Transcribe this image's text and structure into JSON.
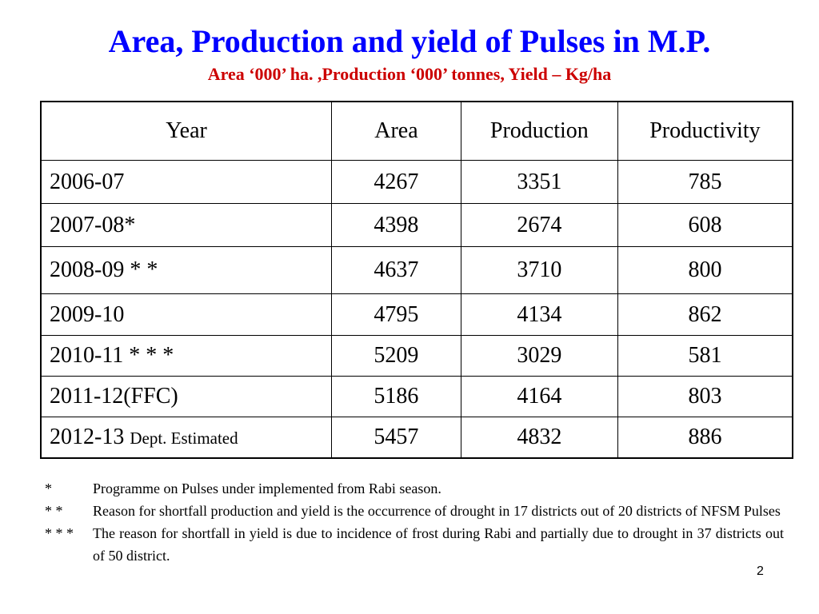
{
  "title": "Area, Production and yield of Pulses in M.P.",
  "subtitle": "Area  ‘000’ ha. ,Production ‘000’ tonnes, Yield – Kg/ha",
  "table": {
    "headers": [
      "Year",
      "Area",
      "Production",
      "Productivity"
    ],
    "rows": [
      {
        "year": "2006-07",
        "year_note": "",
        "area": "4267",
        "production": "3351",
        "productivity": "785"
      },
      {
        "year": "2007-08*",
        "year_note": "",
        "area": "4398",
        "production": "2674",
        "productivity": "608"
      },
      {
        "year": "2008-09 * *",
        "year_note": "",
        "area": "4637",
        "production": "3710",
        "productivity": "800"
      },
      {
        "year": "2009-10",
        "year_note": "",
        "area": "4795",
        "production": "4134",
        "productivity": "862"
      },
      {
        "year": "2010-11 * * *",
        "year_note": "",
        "area": "5209",
        "production": "3029",
        "productivity": "581"
      },
      {
        "year": "2011-12(FFC)",
        "year_note": "",
        "area": "5186",
        "production": "4164",
        "productivity": "803"
      },
      {
        "year": "2012-13",
        "year_note": "Dept. Estimated",
        "area": "5457",
        "production": "4832",
        "productivity": "886"
      }
    ]
  },
  "notes": [
    {
      "mark": "*",
      "text": "Programme on Pulses under implemented from Rabi season."
    },
    {
      "mark": "* *",
      "text": "Reason for shortfall production and yield is the occurrence of drought in 17 districts  out of 20 districts of NFSM Pulses"
    },
    {
      "mark": "* * *",
      "text": "The reason for shortfall in yield is due to incidence of frost during Rabi and partially due to drought in 37 districts out of 50 district."
    }
  ],
  "page_number": "2"
}
